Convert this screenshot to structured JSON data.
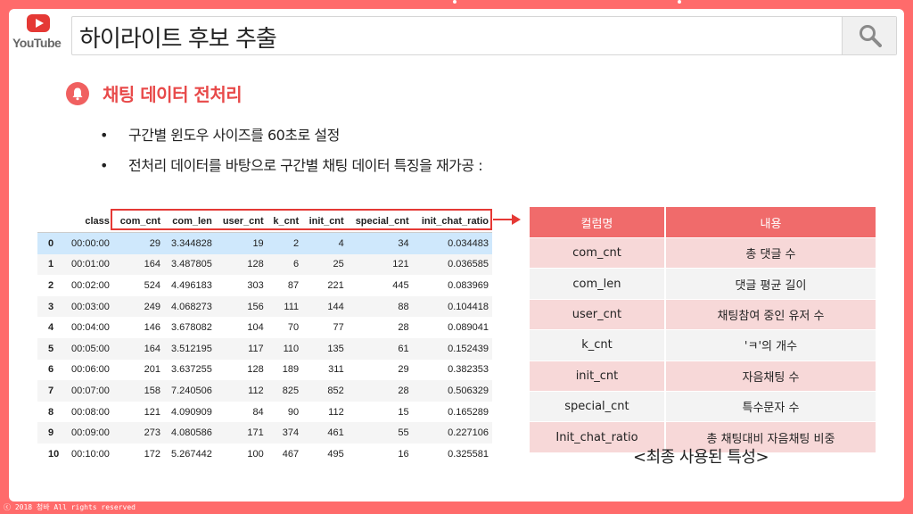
{
  "brand": {
    "logo_text": "YouTube"
  },
  "search": {
    "query": "하이라이트 후보 추출"
  },
  "section": {
    "title": "채팅 데이터 전처리"
  },
  "bullets": [
    {
      "text": "구간별 윈도우 사이즈를 60초로 설정"
    },
    {
      "text": "전처리 데이터를 바탕으로 구간별 채팅 데이터 특징을 재가공 :"
    }
  ],
  "data_table": {
    "headers": [
      "",
      "class",
      "com_cnt",
      "com_len",
      "user_cnt",
      "k_cnt",
      "init_cnt",
      "special_cnt",
      "init_chat_ratio"
    ],
    "rows": [
      [
        "0",
        "00:00:00",
        "29",
        "3.344828",
        "19",
        "2",
        "4",
        "34",
        "0.034483"
      ],
      [
        "1",
        "00:01:00",
        "164",
        "3.487805",
        "128",
        "6",
        "25",
        "121",
        "0.036585"
      ],
      [
        "2",
        "00:02:00",
        "524",
        "4.496183",
        "303",
        "87",
        "221",
        "445",
        "0.083969"
      ],
      [
        "3",
        "00:03:00",
        "249",
        "4.068273",
        "156",
        "111",
        "144",
        "88",
        "0.104418"
      ],
      [
        "4",
        "00:04:00",
        "146",
        "3.678082",
        "104",
        "70",
        "77",
        "28",
        "0.089041"
      ],
      [
        "5",
        "00:05:00",
        "164",
        "3.512195",
        "117",
        "110",
        "135",
        "61",
        "0.152439"
      ],
      [
        "6",
        "00:06:00",
        "201",
        "3.637255",
        "128",
        "189",
        "311",
        "29",
        "0.382353"
      ],
      [
        "7",
        "00:07:00",
        "158",
        "7.240506",
        "112",
        "825",
        "852",
        "28",
        "0.506329"
      ],
      [
        "8",
        "00:08:00",
        "121",
        "4.090909",
        "84",
        "90",
        "112",
        "15",
        "0.165289"
      ],
      [
        "9",
        "00:09:00",
        "273",
        "4.080586",
        "171",
        "374",
        "461",
        "55",
        "0.227106"
      ],
      [
        "10",
        "00:10:00",
        "172",
        "5.267442",
        "100",
        "467",
        "495",
        "16",
        "0.325581"
      ]
    ]
  },
  "feature_table": {
    "headers": [
      "컬럼명",
      "내용"
    ],
    "rows": [
      [
        "com_cnt",
        "총 댓글 수"
      ],
      [
        "com_len",
        "댓글 평균 길이"
      ],
      [
        "user_cnt",
        "채팅참여 중인 유저 수"
      ],
      [
        "k_cnt",
        "'ㅋ'의 개수"
      ],
      [
        "init_cnt",
        "자음채팅 수"
      ],
      [
        "special_cnt",
        "특수문자 수"
      ],
      [
        "Init_chat_ratio",
        "총 채팅대비 자음채팅 비중"
      ]
    ]
  },
  "caption": "<최종 사용된 특성>",
  "footer": "ⓒ 2018 청바 All rights reserved",
  "colors": {
    "accent": "#e84a4a",
    "background": "#ff6b6b",
    "header": "#f06b6b"
  }
}
